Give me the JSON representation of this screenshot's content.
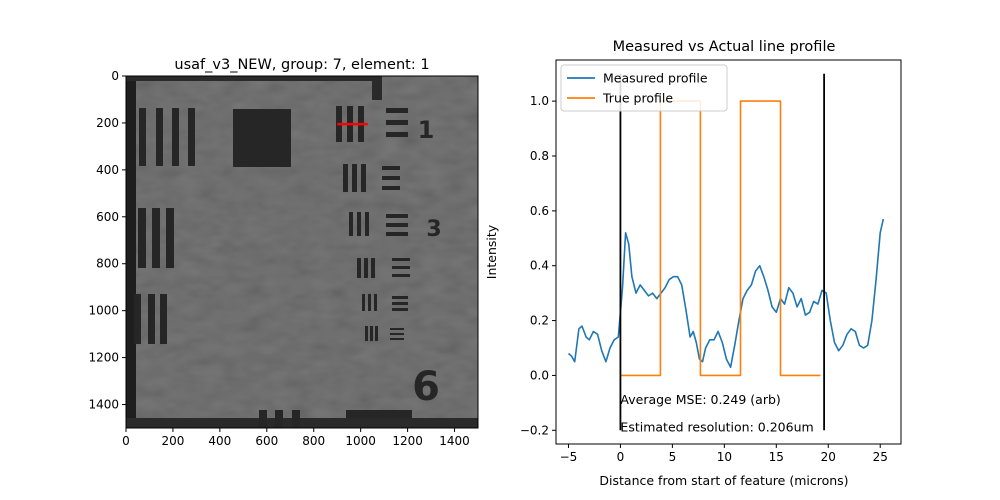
{
  "left_panel": {
    "title": "usaf_v3_NEW, group: 7, element: 1",
    "xticks": [
      0,
      200,
      400,
      600,
      800,
      1000,
      1200,
      1400
    ],
    "yticks": [
      0,
      200,
      400,
      600,
      800,
      1000,
      1200,
      1400
    ],
    "xlim": [
      0,
      1500
    ],
    "ylim": [
      1500,
      0
    ],
    "group_numbers": [
      "1",
      "3",
      "6"
    ],
    "marker_line": {
      "x": [
        900,
        1030
      ],
      "y": 205,
      "color": "#ff0000"
    }
  },
  "chart_data": {
    "type": "line",
    "title": "Measured vs Actual line profile",
    "xlabel": "Distance from start of feature (microns)",
    "ylabel": "Intensity",
    "xlim": [
      -6.2,
      27
    ],
    "ylim": [
      -0.25,
      1.15
    ],
    "xticks": [
      -5,
      0,
      5,
      10,
      15,
      20,
      25
    ],
    "yticks": [
      -0.2,
      0.0,
      0.2,
      0.4,
      0.6,
      0.8,
      1.0
    ],
    "legend_position": "top-left",
    "series": [
      {
        "name": "Measured profile",
        "color": "#1f77b4",
        "x": [
          -5,
          -4.7,
          -4.4,
          -4.0,
          -3.7,
          -3.3,
          -3.0,
          -2.6,
          -2.2,
          -1.8,
          -1.4,
          -1.0,
          -0.6,
          -0.2,
          0.2,
          0.5,
          0.8,
          1.1,
          1.5,
          1.9,
          2.3,
          2.7,
          3.1,
          3.5,
          3.9,
          4.3,
          4.7,
          5.1,
          5.5,
          5.9,
          6.3,
          6.7,
          7.0,
          7.3,
          7.6,
          7.9,
          8.2,
          8.6,
          9.0,
          9.4,
          9.8,
          10.2,
          10.6,
          11.0,
          11.4,
          11.8,
          12.2,
          12.6,
          13.0,
          13.4,
          13.8,
          14.2,
          14.6,
          15.0,
          15.4,
          15.8,
          16.2,
          16.6,
          17.0,
          17.4,
          17.8,
          18.2,
          18.6,
          19.0,
          19.4,
          19.8,
          20.2,
          20.6,
          21.0,
          21.4,
          21.8,
          22.2,
          22.6,
          23.0,
          23.4,
          23.8,
          24.2,
          24.6,
          25.0,
          25.3
        ],
        "y": [
          0.08,
          0.07,
          0.05,
          0.17,
          0.18,
          0.14,
          0.13,
          0.16,
          0.15,
          0.09,
          0.05,
          0.1,
          0.13,
          0.14,
          0.32,
          0.52,
          0.48,
          0.36,
          0.3,
          0.33,
          0.31,
          0.29,
          0.3,
          0.28,
          0.3,
          0.32,
          0.35,
          0.36,
          0.36,
          0.33,
          0.24,
          0.14,
          0.16,
          0.12,
          0.06,
          0.05,
          0.1,
          0.13,
          0.13,
          0.16,
          0.12,
          0.06,
          0.03,
          0.11,
          0.2,
          0.28,
          0.31,
          0.33,
          0.38,
          0.4,
          0.36,
          0.31,
          0.25,
          0.23,
          0.28,
          0.26,
          0.32,
          0.3,
          0.25,
          0.28,
          0.22,
          0.23,
          0.27,
          0.26,
          0.31,
          0.3,
          0.2,
          0.12,
          0.09,
          0.11,
          0.15,
          0.17,
          0.16,
          0.11,
          0.1,
          0.11,
          0.2,
          0.35,
          0.52,
          0.57
        ]
      },
      {
        "name": "True profile",
        "color": "#ff7f0e",
        "x": [
          0,
          3.85,
          3.85,
          7.7,
          7.7,
          11.55,
          11.55,
          15.4,
          15.4,
          19.25
        ],
        "y": [
          0,
          0,
          1,
          1,
          0,
          0,
          1,
          1,
          0,
          0
        ]
      }
    ],
    "vertical_lines": [
      {
        "x": 0,
        "y": [
          -0.2,
          1.1
        ],
        "color": "#000000"
      },
      {
        "x": 19.6,
        "y": [
          -0.2,
          1.1
        ],
        "color": "#000000"
      }
    ],
    "annotations": [
      {
        "text": "Average MSE: 0.249 (arb)",
        "x": 0,
        "y": -0.09
      },
      {
        "text": "Estimated resolution: 0.206um",
        "x": 0,
        "y": -0.19
      }
    ]
  }
}
